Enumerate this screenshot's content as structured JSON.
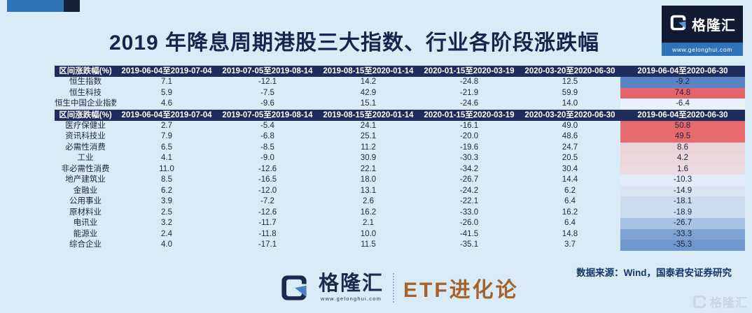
{
  "page_title": "2019 年降息周期港股三大指数、行业各阶段涨跌幅",
  "top_logo": {
    "brand": "格隆汇",
    "url": "www.gelonghui.com"
  },
  "footer": {
    "brand": "格隆汇",
    "url": "www.gelonghui.com",
    "program": "ETF进化论",
    "source": "数据来源：Wind，国泰君安证券研究",
    "watermark": "格隆汇"
  },
  "colors": {
    "background": "#d9ebf7",
    "header_bg": "#1f2d5e",
    "title_text": "#14264e",
    "value_text": "#1b2742",
    "accent_blue": "#2e74b6",
    "accent_navy": "#152238",
    "etf_brown": "#a5632b",
    "heat_red": "#e5696d",
    "heat_blue": "#5c84c5"
  },
  "chart_data": {
    "type": "table",
    "title": "2019 年降息周期港股三大指数、行业各阶段涨跌幅",
    "header_label": "区间涨跌幅(%)",
    "columns": [
      "2019-06-04至2019-07-04",
      "2019-07-05至2019-08-14",
      "2019-08-15至2020-01-14",
      "2020-01-15至2020-03-19",
      "2020-03-20至2020-06-30",
      "2019-06-04至2020-06-30"
    ],
    "tables": [
      {
        "name": "indices",
        "rows": [
          {
            "label": "恒生指数",
            "values": [
              "7.1",
              "-12.1",
              "14.2",
              "-24.8",
              "12.5",
              "-9.2"
            ],
            "last_bg": "#5c84c5"
          },
          {
            "label": "恒生科技",
            "values": [
              "5.9",
              "-7.5",
              "42.9",
              "-21.9",
              "59.9",
              "74.8"
            ],
            "last_bg": "#e5646c"
          },
          {
            "label": "恒生中国企业指数",
            "values": [
              "4.6",
              "-9.6",
              "15.1",
              "-24.6",
              "14.0",
              "-6.4"
            ],
            "last_bg": "#e9f2fa"
          }
        ]
      },
      {
        "name": "industries",
        "rows": [
          {
            "label": "医疗保健业",
            "values": [
              "2.7",
              "-5.4",
              "24.1",
              "-16.1",
              "49.0",
              "50.8"
            ],
            "last_bg": "#e5696d"
          },
          {
            "label": "资讯科技业",
            "values": [
              "7.9",
              "-6.8",
              "25.1",
              "-20.0",
              "48.6",
              "49.5"
            ],
            "last_bg": "#e66a6e"
          },
          {
            "label": "必需性消费",
            "values": [
              "6.5",
              "-8.5",
              "11.2",
              "-19.6",
              "24.7",
              "8.6"
            ],
            "last_bg": "#ecd3d8"
          },
          {
            "label": "工业",
            "values": [
              "4.1",
              "-9.0",
              "30.9",
              "-30.3",
              "20.5",
              "4.2"
            ],
            "last_bg": "#ebd7db"
          },
          {
            "label": "非必需性消费",
            "values": [
              "11.0",
              "-12.6",
              "22.1",
              "-34.2",
              "30.4",
              "1.6"
            ],
            "last_bg": "#e9dbdf"
          },
          {
            "label": "地产建筑业",
            "values": [
              "8.5",
              "-16.5",
              "18.0",
              "-26.7",
              "14.4",
              "-10.3"
            ],
            "last_bg": "#e2ecf6"
          },
          {
            "label": "金融业",
            "values": [
              "6.2",
              "-12.0",
              "13.1",
              "-24.2",
              "6.2",
              "-14.9"
            ],
            "last_bg": "#d8e5f2"
          },
          {
            "label": "公用事业",
            "values": [
              "3.9",
              "-7.2",
              "2.6",
              "-22.1",
              "6.4",
              "-18.1"
            ],
            "last_bg": "#ccdcef"
          },
          {
            "label": "原材料业",
            "values": [
              "2.5",
              "-12.6",
              "16.2",
              "-33.0",
              "16.2",
              "-18.9"
            ],
            "last_bg": "#cbdcf0"
          },
          {
            "label": "电讯业",
            "values": [
              "3.2",
              "-11.7",
              "2.1",
              "-26.0",
              "6.4",
              "-26.7"
            ],
            "last_bg": "#a7c2e2"
          },
          {
            "label": "能源业",
            "values": [
              "2.4",
              "-11.8",
              "10.0",
              "-41.5",
              "14.8",
              "-33.3"
            ],
            "last_bg": "#7fa2d3"
          },
          {
            "label": "综合企业",
            "values": [
              "4.0",
              "-17.1",
              "11.5",
              "-35.1",
              "3.7",
              "-35.3"
            ],
            "last_bg": "#7097cd"
          }
        ]
      }
    ]
  }
}
